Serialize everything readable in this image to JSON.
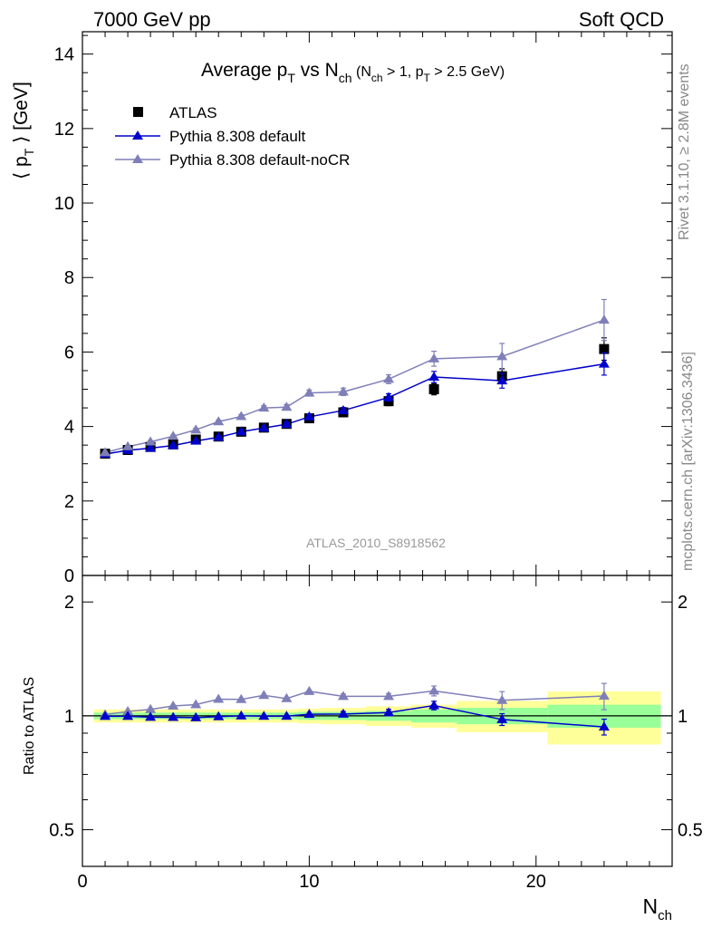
{
  "header": {
    "left": "7000 GeV pp",
    "right": "Soft QCD"
  },
  "side_labels": {
    "rivet": "Rivet 3.1.10, ≥ 2.8M events",
    "mcplots": "mcplots.cern.ch [arXiv:1306.3436]"
  },
  "chart_data": [
    {
      "type": "line",
      "title": "Average pT vs Nch (Nch > 1, pT > 2.5 GeV)",
      "title_parts": {
        "main": "Average p",
        "sub1": "T",
        "vs": " vs N",
        "sub2": "ch",
        "cut": " (N",
        "sub3": "ch",
        "cut2": " > 1, p",
        "sub4": "T",
        "cut3": " > 2.5 GeV)"
      },
      "ylabel": "⟨ pT ⟩ [GeV]",
      "ylabel_parts": {
        "open": "⟨ p",
        "sub": "T",
        "close": " ⟩ [GeV]"
      },
      "xlabel": "Nch",
      "xlabel_parts": {
        "main": "N",
        "sub": "ch"
      },
      "ylim": [
        0,
        14.6
      ],
      "xlim": [
        0,
        26
      ],
      "yticks": [
        0,
        2,
        4,
        6,
        8,
        10,
        12,
        14
      ],
      "watermark": "ATLAS_2010_S8918562",
      "legend_position": "top-left",
      "series": [
        {
          "name": "ATLAS",
          "color": "#000000",
          "marker": "square",
          "x": [
            1,
            2,
            3,
            4,
            5,
            6,
            7,
            8,
            9,
            10,
            11.5,
            13.5,
            15.5,
            18.5,
            23
          ],
          "y": [
            3.27,
            3.37,
            3.45,
            3.52,
            3.65,
            3.73,
            3.86,
            3.97,
            4.07,
            4.22,
            4.38,
            4.68,
            5.0,
            5.35,
            6.08
          ],
          "err": [
            0.03,
            0.03,
            0.03,
            0.04,
            0.04,
            0.04,
            0.05,
            0.06,
            0.07,
            0.08,
            0.1,
            0.12,
            0.15,
            0.2,
            0.3
          ]
        },
        {
          "name": "Pythia 8.308 default",
          "color": "#0000cc",
          "marker": "triangle",
          "x": [
            1,
            2,
            3,
            4,
            5,
            6,
            7,
            8,
            9,
            10,
            11.5,
            13.5,
            15.5,
            18.5,
            23
          ],
          "y": [
            3.26,
            3.36,
            3.42,
            3.49,
            3.61,
            3.71,
            3.86,
            3.96,
            4.06,
            4.26,
            4.43,
            4.78,
            5.33,
            5.23,
            5.68
          ],
          "err": [
            0.02,
            0.02,
            0.03,
            0.03,
            0.03,
            0.04,
            0.04,
            0.05,
            0.06,
            0.07,
            0.08,
            0.1,
            0.15,
            0.2,
            0.3
          ]
        },
        {
          "name": "Pythia 8.308 default-noCR",
          "color": "#7f7fb8",
          "marker": "triangle",
          "x": [
            1,
            2,
            3,
            4,
            5,
            6,
            7,
            8,
            9,
            10,
            11.5,
            13.5,
            15.5,
            18.5,
            23
          ],
          "y": [
            3.3,
            3.46,
            3.59,
            3.74,
            3.91,
            4.13,
            4.27,
            4.5,
            4.52,
            4.9,
            4.93,
            5.27,
            5.82,
            5.88,
            6.86
          ],
          "err": [
            0.02,
            0.02,
            0.03,
            0.03,
            0.04,
            0.04,
            0.05,
            0.06,
            0.07,
            0.08,
            0.1,
            0.12,
            0.2,
            0.35,
            0.55
          ]
        }
      ]
    },
    {
      "type": "line",
      "ylabel": "Ratio to ATLAS",
      "xlabel": "Nch",
      "scale": "log",
      "ylim": [
        0.4,
        2.35
      ],
      "xlim": [
        0,
        26
      ],
      "yticks": [
        0.5,
        1,
        2
      ],
      "ytick_labels": [
        "0.5",
        "1",
        "2"
      ],
      "xticks": [
        0,
        10,
        20
      ],
      "xtick_labels": [
        "0",
        "10",
        "20"
      ],
      "bands": {
        "x_edges": [
          0.5,
          1.5,
          2.5,
          3.5,
          4.5,
          5.5,
          6.5,
          7.5,
          8.5,
          9.5,
          10.5,
          12.5,
          14.5,
          16.5,
          20.5,
          25.5
        ],
        "yellow_half_width": [
          0.04,
          0.04,
          0.04,
          0.04,
          0.04,
          0.04,
          0.04,
          0.04,
          0.04,
          0.045,
          0.05,
          0.06,
          0.07,
          0.095,
          0.16
        ],
        "green_half_width": [
          0.02,
          0.02,
          0.02,
          0.02,
          0.02,
          0.02,
          0.02,
          0.02,
          0.02,
          0.025,
          0.025,
          0.03,
          0.04,
          0.05,
          0.07
        ],
        "yellow_color": "#ffff99",
        "green_color": "#99ff99"
      },
      "series": [
        {
          "name": "Pythia 8.308 default",
          "color": "#0000cc",
          "x": [
            1,
            2,
            3,
            4,
            5,
            6,
            7,
            8,
            9,
            10,
            11.5,
            13.5,
            15.5,
            18.5,
            23
          ],
          "y": [
            0.997,
            0.997,
            0.992,
            0.991,
            0.989,
            0.995,
            1.0,
            0.998,
            0.998,
            1.01,
            1.011,
            1.02,
            1.065,
            0.978,
            0.935
          ],
          "err": [
            0.005,
            0.005,
            0.006,
            0.006,
            0.007,
            0.008,
            0.009,
            0.01,
            0.012,
            0.014,
            0.016,
            0.02,
            0.028,
            0.035,
            0.045
          ]
        },
        {
          "name": "Pythia 8.308 default-noCR",
          "color": "#7f7fb8",
          "x": [
            1,
            2,
            3,
            4,
            5,
            6,
            7,
            8,
            9,
            10,
            11.5,
            13.5,
            15.5,
            18.5,
            23
          ],
          "y": [
            1.008,
            1.027,
            1.04,
            1.062,
            1.071,
            1.107,
            1.105,
            1.133,
            1.111,
            1.161,
            1.126,
            1.126,
            1.164,
            1.099,
            1.128
          ],
          "err": [
            0.005,
            0.005,
            0.006,
            0.006,
            0.007,
            0.008,
            0.009,
            0.01,
            0.012,
            0.014,
            0.016,
            0.02,
            0.035,
            0.06,
            0.09
          ]
        }
      ]
    }
  ]
}
